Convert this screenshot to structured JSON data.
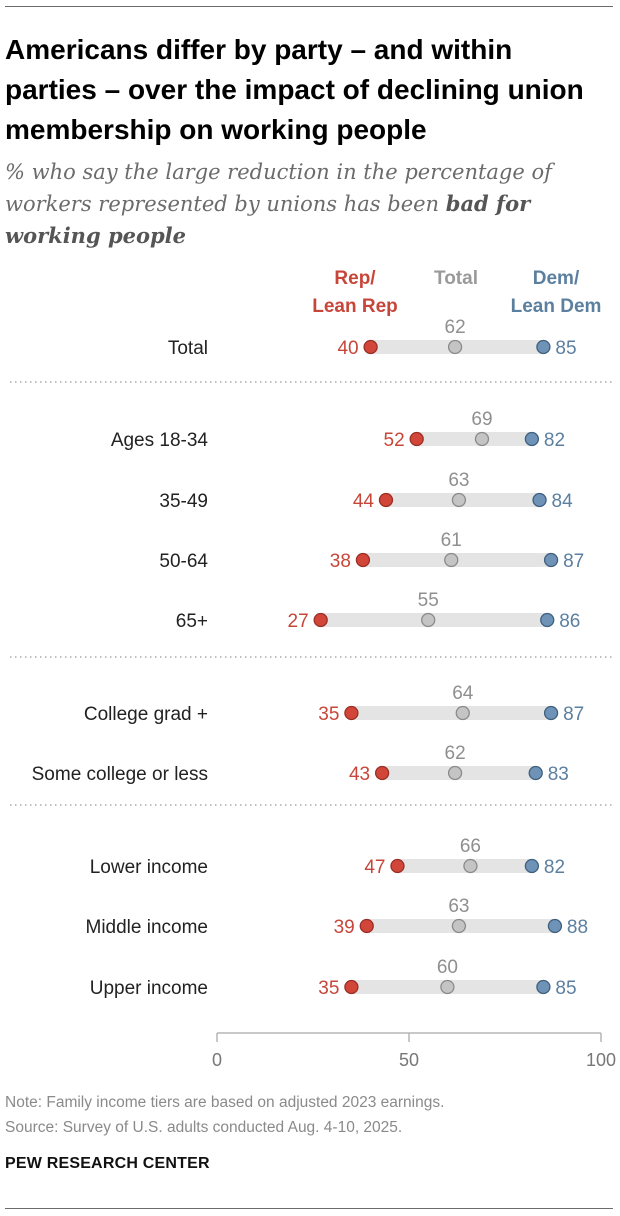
{
  "title": "Americans differ by party – and within parties – over the impact of declining union membership on working people",
  "subtitle": {
    "prefix": "% who say the large reduction in the percentage of workers represented by unions has been ",
    "emphasis": "bad for working people"
  },
  "legend": {
    "rep": "Rep/ Lean Rep",
    "total": "Total",
    "dem": "Dem/ Lean Dem"
  },
  "colors": {
    "rep": "#d2463a",
    "total": "#c4c4c4",
    "dem": "#6e93b6",
    "rep_text": "#c7463a",
    "total_text": "#8f8f8f",
    "dem_text": "#5b7f9f",
    "bar": "#e4e4e4"
  },
  "chart_data": {
    "type": "dot-plot",
    "series_names": [
      "Rep/Lean Rep",
      "Total",
      "Dem/Lean Dem"
    ],
    "xlim": [
      0,
      100
    ],
    "ticks": [
      0,
      50,
      100
    ],
    "groups": [
      {
        "rows": [
          {
            "label": "Total",
            "rep": 40,
            "total": 62,
            "dem": 85
          }
        ]
      },
      {
        "rows": [
          {
            "label": "Ages 18-34",
            "rep": 52,
            "total": 69,
            "dem": 82
          },
          {
            "label": "35-49",
            "rep": 44,
            "total": 63,
            "dem": 84
          },
          {
            "label": "50-64",
            "rep": 38,
            "total": 61,
            "dem": 87
          },
          {
            "label": "65+",
            "rep": 27,
            "total": 55,
            "dem": 86
          }
        ]
      },
      {
        "rows": [
          {
            "label": "College grad +",
            "rep": 35,
            "total": 64,
            "dem": 87
          },
          {
            "label": "Some college or less",
            "rep": 43,
            "total": 62,
            "dem": 83
          }
        ]
      },
      {
        "rows": [
          {
            "label": "Lower income",
            "rep": 47,
            "total": 66,
            "dem": 82
          },
          {
            "label": "Middle income",
            "rep": 39,
            "total": 63,
            "dem": 88
          },
          {
            "label": "Upper income",
            "rep": 35,
            "total": 60,
            "dem": 85
          }
        ]
      }
    ]
  },
  "note": "Note: Family income tiers are based on adjusted 2023 earnings.",
  "source": "Source: Survey of U.S. adults conducted Aug. 4-10, 2025.",
  "brand": "PEW RESEARCH CENTER"
}
